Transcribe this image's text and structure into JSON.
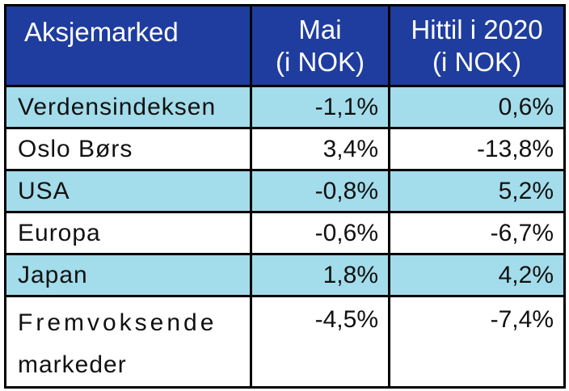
{
  "table": {
    "header": {
      "col1": "Aksjemarked",
      "col2_line1": "Mai",
      "col2_line2": "(i NOK)",
      "col3_line1": "Hittil i 2020",
      "col3_line2": "(i NOK)"
    },
    "rows": [
      {
        "market": "Verdensindeksen",
        "may": "-1,1%",
        "ytd": "0,6%"
      },
      {
        "market": "Oslo Børs",
        "may": "3,4%",
        "ytd": "-13,8%"
      },
      {
        "market": "USA",
        "may": "-0,8%",
        "ytd": "5,2%"
      },
      {
        "market": "Europa",
        "may": "-0,6%",
        "ytd": "-6,7%"
      },
      {
        "market": "Japan",
        "may": "1,8%",
        "ytd": "4,2%"
      },
      {
        "market_line1": "Fremvoksende",
        "market_line2": "markeder",
        "may": "-4,5%",
        "ytd": "-7,4%"
      }
    ]
  },
  "colors": {
    "header_bg": "#1f3d9e",
    "header_text": "#ffffff",
    "shaded_row_bg": "#a3dcea",
    "border": "#000000"
  }
}
